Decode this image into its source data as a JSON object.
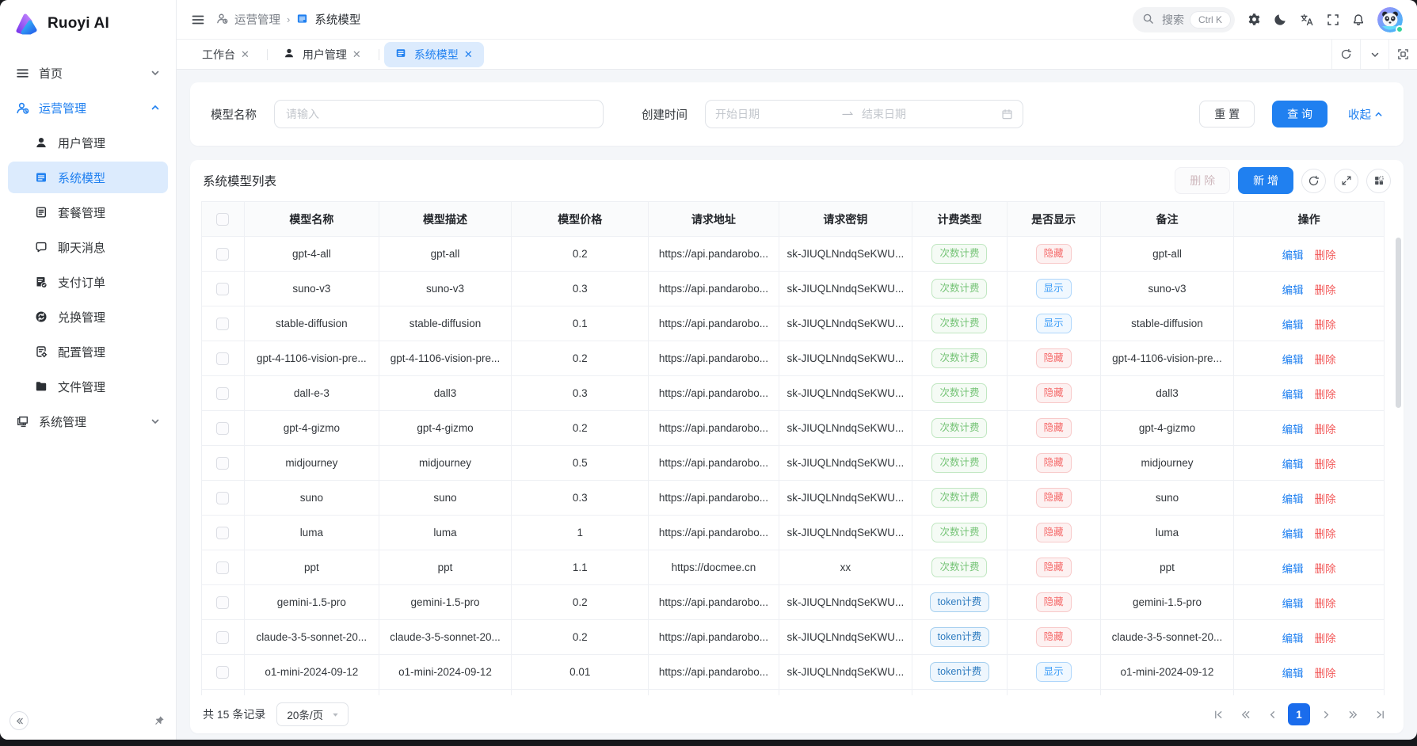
{
  "app": {
    "logo_text": "Ruoyi AI"
  },
  "colors": {
    "primary": "#2080f0",
    "active_tab_bg": "#dcebfd",
    "tag_count_green": "#74c375",
    "tag_token_blue": "#2f7cc0",
    "tag_hidden_red": "#f56c6c",
    "tag_shown_blue": "#3f9ef8",
    "edit_link": "#2080f0",
    "delete_link": "#f25a5a"
  },
  "sidebar": {
    "menu_home": {
      "label": "首页",
      "icon": "home-icon"
    },
    "menu_operations": {
      "label": "运营管理",
      "icon": "operations-icon"
    },
    "submenu": [
      {
        "label": "用户管理",
        "icon": "user-icon"
      },
      {
        "label": "系统模型",
        "icon": "model-icon",
        "active": true
      },
      {
        "label": "套餐管理",
        "icon": "package-icon"
      },
      {
        "label": "聊天消息",
        "icon": "chat-icon"
      },
      {
        "label": "支付订单",
        "icon": "payment-icon"
      },
      {
        "label": "兑换管理",
        "icon": "exchange-icon"
      },
      {
        "label": "配置管理",
        "icon": "config-icon"
      },
      {
        "label": "文件管理",
        "icon": "folder-icon"
      }
    ],
    "menu_system": {
      "label": "系统管理",
      "icon": "system-icon"
    }
  },
  "topbar": {
    "breadcrumb": [
      {
        "label": "运营管理",
        "icon": "operations-icon"
      },
      {
        "label": "系统模型",
        "icon": "model-icon"
      }
    ],
    "search_placeholder": "搜索",
    "search_shortcut": "Ctrl K",
    "icon_names": [
      "settings-icon",
      "dark-mode-icon",
      "translate-icon",
      "fullscreen-icon",
      "notifications-icon",
      "avatar"
    ]
  },
  "tabs": [
    {
      "label": "工作台"
    },
    {
      "label": "用户管理",
      "icon": "user-icon"
    },
    {
      "label": "系统模型",
      "icon": "model-icon",
      "active": true
    }
  ],
  "tabbar_action_icons": [
    "refresh-icon",
    "chevron-down-icon",
    "maximize-icon"
  ],
  "filter": {
    "model_name_label": "模型名称",
    "model_name_placeholder": "请输入",
    "create_time_label": "创建时间",
    "start_date_placeholder": "开始日期",
    "end_date_placeholder": "结束日期",
    "reset_label": "重 置",
    "query_label": "查 询",
    "collapse_label": "收起"
  },
  "table": {
    "title": "系统模型列表",
    "delete_label": "删 除",
    "add_label": "新 增",
    "tool_icons": [
      "refresh-icon",
      "expand-icon",
      "column-settings-icon"
    ],
    "columns": [
      "模型名称",
      "模型描述",
      "模型价格",
      "请求地址",
      "请求密钥",
      "计费类型",
      "是否显示",
      "备注",
      "操作"
    ],
    "edit_label": "编辑",
    "row_delete_label": "删除",
    "rows": [
      {
        "name": "gpt-4-all",
        "desc": "gpt-all",
        "price": "0.2",
        "url": "https://api.pandarobo...",
        "key": "sk-JIUQLNndqSeKWU...",
        "billing": {
          "label": "次数计费",
          "type": "count"
        },
        "visible": {
          "label": "隐藏",
          "type": "hidden"
        },
        "remark": "gpt-all"
      },
      {
        "name": "suno-v3",
        "desc": "suno-v3",
        "price": "0.3",
        "url": "https://api.pandarobo...",
        "key": "sk-JIUQLNndqSeKWU...",
        "billing": {
          "label": "次数计费",
          "type": "count"
        },
        "visible": {
          "label": "显示",
          "type": "shown"
        },
        "remark": "suno-v3"
      },
      {
        "name": "stable-diffusion",
        "desc": "stable-diffusion",
        "price": "0.1",
        "url": "https://api.pandarobo...",
        "key": "sk-JIUQLNndqSeKWU...",
        "billing": {
          "label": "次数计费",
          "type": "count"
        },
        "visible": {
          "label": "显示",
          "type": "shown"
        },
        "remark": "stable-diffusion"
      },
      {
        "name": "gpt-4-1106-vision-pre...",
        "desc": "gpt-4-1106-vision-pre...",
        "price": "0.2",
        "url": "https://api.pandarobo...",
        "key": "sk-JIUQLNndqSeKWU...",
        "billing": {
          "label": "次数计费",
          "type": "count"
        },
        "visible": {
          "label": "隐藏",
          "type": "hidden"
        },
        "remark": "gpt-4-1106-vision-pre..."
      },
      {
        "name": "dall-e-3",
        "desc": "dall3",
        "price": "0.3",
        "url": "https://api.pandarobo...",
        "key": "sk-JIUQLNndqSeKWU...",
        "billing": {
          "label": "次数计费",
          "type": "count"
        },
        "visible": {
          "label": "隐藏",
          "type": "hidden"
        },
        "remark": "dall3"
      },
      {
        "name": "gpt-4-gizmo",
        "desc": "gpt-4-gizmo",
        "price": "0.2",
        "url": "https://api.pandarobo...",
        "key": "sk-JIUQLNndqSeKWU...",
        "billing": {
          "label": "次数计费",
          "type": "count"
        },
        "visible": {
          "label": "隐藏",
          "type": "hidden"
        },
        "remark": "gpt-4-gizmo"
      },
      {
        "name": "midjourney",
        "desc": "midjourney",
        "price": "0.5",
        "url": "https://api.pandarobo...",
        "key": "sk-JIUQLNndqSeKWU...",
        "billing": {
          "label": "次数计费",
          "type": "count"
        },
        "visible": {
          "label": "隐藏",
          "type": "hidden"
        },
        "remark": "midjourney"
      },
      {
        "name": "suno",
        "desc": "suno",
        "price": "0.3",
        "url": "https://api.pandarobo...",
        "key": "sk-JIUQLNndqSeKWU...",
        "billing": {
          "label": "次数计费",
          "type": "count"
        },
        "visible": {
          "label": "隐藏",
          "type": "hidden"
        },
        "remark": "suno"
      },
      {
        "name": "luma",
        "desc": "luma",
        "price": "1",
        "url": "https://api.pandarobo...",
        "key": "sk-JIUQLNndqSeKWU...",
        "billing": {
          "label": "次数计费",
          "type": "count"
        },
        "visible": {
          "label": "隐藏",
          "type": "hidden"
        },
        "remark": "luma"
      },
      {
        "name": "ppt",
        "desc": "ppt",
        "price": "1.1",
        "url": "https://docmee.cn",
        "key": "xx",
        "billing": {
          "label": "次数计费",
          "type": "count"
        },
        "visible": {
          "label": "隐藏",
          "type": "hidden"
        },
        "remark": "ppt"
      },
      {
        "name": "gemini-1.5-pro",
        "desc": "gemini-1.5-pro",
        "price": "0.2",
        "url": "https://api.pandarobo...",
        "key": "sk-JIUQLNndqSeKWU...",
        "billing": {
          "label": "token计费",
          "type": "token"
        },
        "visible": {
          "label": "隐藏",
          "type": "hidden"
        },
        "remark": "gemini-1.5-pro"
      },
      {
        "name": "claude-3-5-sonnet-20...",
        "desc": "claude-3-5-sonnet-20...",
        "price": "0.2",
        "url": "https://api.pandarobo...",
        "key": "sk-JIUQLNndqSeKWU...",
        "billing": {
          "label": "token计费",
          "type": "token"
        },
        "visible": {
          "label": "隐藏",
          "type": "hidden"
        },
        "remark": "claude-3-5-sonnet-20..."
      },
      {
        "name": "o1-mini-2024-09-12",
        "desc": "o1-mini-2024-09-12",
        "price": "0.01",
        "url": "https://api.pandarobo...",
        "key": "sk-JIUQLNndqSeKWU...",
        "billing": {
          "label": "token计费",
          "type": "token"
        },
        "visible": {
          "label": "显示",
          "type": "shown"
        },
        "remark": "o1-mini-2024-09-12"
      }
    ]
  },
  "pagination": {
    "total_text": "共 15 条记录",
    "page_size": "20条/页",
    "current_page": "1",
    "nav_icons": [
      "first-page-icon",
      "prev-group-icon",
      "prev-page-icon",
      "next-page-icon",
      "next-group-icon",
      "last-page-icon"
    ]
  }
}
